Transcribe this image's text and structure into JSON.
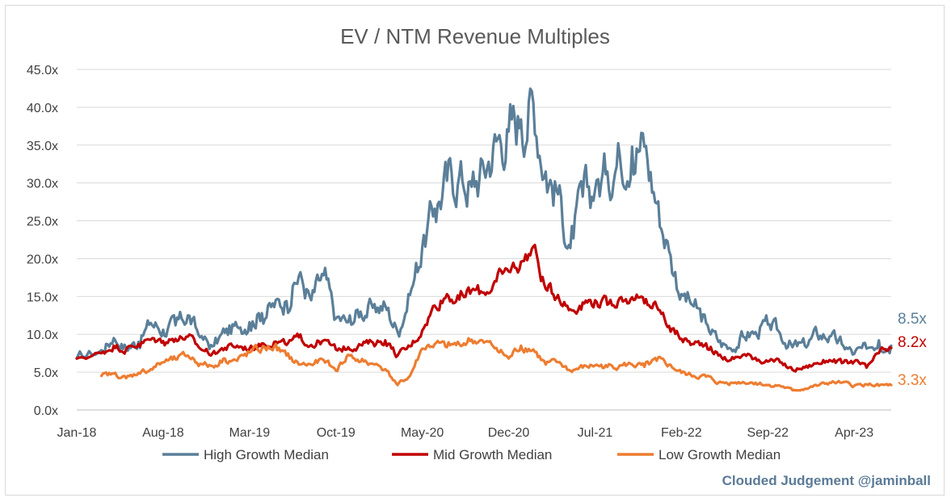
{
  "chart_data": {
    "type": "line",
    "title": "EV / NTM Revenue Multiples",
    "xlabel": "",
    "ylabel": "",
    "x_tick_labels": [
      "Jan-18",
      "Aug-18",
      "Mar-19",
      "Oct-19",
      "May-20",
      "Dec-20",
      "Jul-21",
      "Feb-22",
      "Sep-22",
      "Apr-23"
    ],
    "x_range": [
      "Jan-18",
      "Jul-23"
    ],
    "y_tick_labels": [
      "0.0x",
      "5.0x",
      "10.0x",
      "15.0x",
      "20.0x",
      "25.0x",
      "30.0x",
      "35.0x",
      "40.0x",
      "45.0x"
    ],
    "ylim": [
      0,
      45
    ],
    "grid": "horizontal",
    "legend_position": "bottom",
    "series": [
      {
        "name": "High Growth Median",
        "color": "#5b7f99",
        "end_label": "8.5x",
        "points": [
          [
            "Jan-18",
            6.8
          ],
          [
            "Mar-18",
            7.9
          ],
          [
            "Apr-18",
            9.5
          ],
          [
            "May-18",
            8.2
          ],
          [
            "Jun-18",
            9.0
          ],
          [
            "Jul-18",
            11.5
          ],
          [
            "Aug-18",
            10.6
          ],
          [
            "Sep-18",
            11.2
          ],
          [
            "Oct-18",
            12.5
          ],
          [
            "Nov-18",
            9.6
          ],
          [
            "Dec-18",
            8.4
          ],
          [
            "Jan-19",
            10.2
          ],
          [
            "Feb-19",
            11.0
          ],
          [
            "Mar-19",
            11.6
          ],
          [
            "Apr-19",
            12.8
          ],
          [
            "May-19",
            13.6
          ],
          [
            "Jun-19",
            14.4
          ],
          [
            "Jul-19",
            17.7
          ],
          [
            "Aug-19",
            14.5
          ],
          [
            "Sep-19",
            17.8
          ],
          [
            "Oct-19",
            12.1
          ],
          [
            "Nov-19",
            11.6
          ],
          [
            "Dec-19",
            13.0
          ],
          [
            "Jan-20",
            13.5
          ],
          [
            "Feb-20",
            13.8
          ],
          [
            "Mar-20",
            10.3
          ],
          [
            "Apr-20",
            15.2
          ],
          [
            "May-20",
            21.5
          ],
          [
            "Jun-20",
            26.6
          ],
          [
            "Jul-20",
            30.3
          ],
          [
            "Aug-20",
            31.0
          ],
          [
            "Sep-20",
            29.5
          ],
          [
            "Oct-20",
            31.7
          ],
          [
            "Nov-20",
            35.5
          ],
          [
            "Dec-20",
            36.8
          ],
          [
            "Jan-21",
            38.4
          ],
          [
            "Feb-21",
            40.6
          ],
          [
            "Mar-21",
            31.5
          ],
          [
            "Apr-21",
            28.5
          ],
          [
            "May-21",
            21.4
          ],
          [
            "Jun-21",
            28.2
          ],
          [
            "Jul-21",
            29.1
          ],
          [
            "Aug-21",
            31.5
          ],
          [
            "Sep-21",
            33.7
          ],
          [
            "Oct-21",
            34.8
          ],
          [
            "Nov-21",
            34.8
          ],
          [
            "Dec-21",
            27.3
          ],
          [
            "Jan-22",
            21.0
          ],
          [
            "Feb-22",
            15.3
          ],
          [
            "Mar-22",
            13.7
          ],
          [
            "Apr-22",
            11.5
          ],
          [
            "May-22",
            9.0
          ],
          [
            "Jun-22",
            8.1
          ],
          [
            "Jul-22",
            9.7
          ],
          [
            "Aug-22",
            10.3
          ],
          [
            "Sep-22",
            11.3
          ],
          [
            "Oct-22",
            10.1
          ],
          [
            "Nov-22",
            8.3
          ],
          [
            "Dec-22",
            8.5
          ],
          [
            "Jan-23",
            10.0
          ],
          [
            "Feb-23",
            9.7
          ],
          [
            "Mar-23",
            8.7
          ],
          [
            "Apr-23",
            7.4
          ],
          [
            "May-23",
            8.1
          ],
          [
            "Jun-23",
            9.2
          ],
          [
            "Jul-23",
            8.5
          ]
        ]
      },
      {
        "name": "Mid Growth Median",
        "color": "#c00000",
        "end_label": "8.2x",
        "points": [
          [
            "Jan-18",
            6.8
          ],
          [
            "Mar-18",
            7.5
          ],
          [
            "Apr-18",
            8.5
          ],
          [
            "May-18",
            8.0
          ],
          [
            "Jun-18",
            8.7
          ],
          [
            "Jul-18",
            9.3
          ],
          [
            "Aug-18",
            9.1
          ],
          [
            "Sep-18",
            9.4
          ],
          [
            "Oct-18",
            9.7
          ],
          [
            "Nov-18",
            8.1
          ],
          [
            "Dec-18",
            7.5
          ],
          [
            "Jan-19",
            8.2
          ],
          [
            "Feb-19",
            8.5
          ],
          [
            "Mar-19",
            8.1
          ],
          [
            "Apr-19",
            8.8
          ],
          [
            "May-19",
            9.0
          ],
          [
            "Jun-19",
            8.6
          ],
          [
            "Jul-19",
            9.6
          ],
          [
            "Aug-19",
            8.6
          ],
          [
            "Sep-19",
            9.2
          ],
          [
            "Oct-19",
            8.0
          ],
          [
            "Nov-19",
            8.3
          ],
          [
            "Dec-19",
            8.6
          ],
          [
            "Jan-20",
            8.9
          ],
          [
            "Feb-20",
            9.2
          ],
          [
            "Mar-20",
            7.2
          ],
          [
            "Apr-20",
            8.4
          ],
          [
            "May-20",
            10.5
          ],
          [
            "Jun-20",
            13.8
          ],
          [
            "Jul-20",
            15.3
          ],
          [
            "Aug-20",
            14.6
          ],
          [
            "Sep-20",
            15.8
          ],
          [
            "Oct-20",
            15.5
          ],
          [
            "Nov-20",
            17.0
          ],
          [
            "Dec-20",
            18.3
          ],
          [
            "Jan-21",
            19.6
          ],
          [
            "Feb-21",
            21.6
          ],
          [
            "Mar-21",
            16.0
          ],
          [
            "Apr-21",
            15.2
          ],
          [
            "May-21",
            13.3
          ],
          [
            "Jun-21",
            14.2
          ],
          [
            "Jul-21",
            14.5
          ],
          [
            "Aug-21",
            13.9
          ],
          [
            "Sep-21",
            14.8
          ],
          [
            "Oct-21",
            14.9
          ],
          [
            "Nov-21",
            14.1
          ],
          [
            "Dec-21",
            13.7
          ],
          [
            "Jan-22",
            11.1
          ],
          [
            "Feb-22",
            9.4
          ],
          [
            "Mar-22",
            8.7
          ],
          [
            "Apr-22",
            8.8
          ],
          [
            "May-22",
            7.2
          ],
          [
            "Jun-22",
            6.6
          ],
          [
            "Jul-22",
            7.3
          ],
          [
            "Aug-22",
            6.9
          ],
          [
            "Sep-22",
            6.4
          ],
          [
            "Oct-22",
            6.3
          ],
          [
            "Nov-22",
            5.3
          ],
          [
            "Dec-22",
            5.6
          ],
          [
            "Jan-23",
            6.2
          ],
          [
            "Feb-23",
            6.6
          ],
          [
            "Mar-23",
            6.2
          ],
          [
            "Apr-23",
            6.4
          ],
          [
            "May-23",
            5.6
          ],
          [
            "Jun-23",
            7.5
          ],
          [
            "Jul-23",
            8.2
          ]
        ]
      },
      {
        "name": "Low Growth Median",
        "color": "#ed7d31",
        "end_label": "3.3x",
        "points": [
          [
            "Mar-18",
            4.5
          ],
          [
            "Apr-18",
            4.8
          ],
          [
            "May-18",
            4.2
          ],
          [
            "Jun-18",
            4.9
          ],
          [
            "Jul-18",
            5.4
          ],
          [
            "Aug-18",
            6.3
          ],
          [
            "Sep-18",
            6.7
          ],
          [
            "Oct-18",
            7.2
          ],
          [
            "Nov-18",
            6.1
          ],
          [
            "Dec-18",
            5.8
          ],
          [
            "Jan-19",
            6.8
          ],
          [
            "Feb-19",
            6.5
          ],
          [
            "Mar-19",
            7.6
          ],
          [
            "Apr-19",
            8.1
          ],
          [
            "May-19",
            8.4
          ],
          [
            "Jun-19",
            7.2
          ],
          [
            "Jul-19",
            6.0
          ],
          [
            "Aug-19",
            6.0
          ],
          [
            "Sep-19",
            6.6
          ],
          [
            "Oct-19",
            5.2
          ],
          [
            "Nov-19",
            7.3
          ],
          [
            "Dec-19",
            6.4
          ],
          [
            "Jan-20",
            6.1
          ],
          [
            "Feb-20",
            5.4
          ],
          [
            "Mar-20",
            3.3
          ],
          [
            "Apr-20",
            4.5
          ],
          [
            "May-20",
            8.1
          ],
          [
            "Jun-20",
            8.7
          ],
          [
            "Jul-20",
            8.3
          ],
          [
            "Aug-20",
            8.7
          ],
          [
            "Sep-20",
            9.3
          ],
          [
            "Oct-20",
            8.9
          ],
          [
            "Nov-20",
            8.2
          ],
          [
            "Dec-20",
            6.8
          ],
          [
            "Jan-21",
            8.5
          ],
          [
            "Feb-21",
            8.0
          ],
          [
            "Mar-21",
            6.0
          ],
          [
            "Apr-21",
            6.3
          ],
          [
            "May-21",
            5.2
          ],
          [
            "Jun-21",
            5.6
          ],
          [
            "Jul-21",
            5.9
          ],
          [
            "Aug-21",
            5.7
          ],
          [
            "Sep-21",
            5.9
          ],
          [
            "Oct-21",
            6.0
          ],
          [
            "Nov-21",
            5.7
          ],
          [
            "Dec-21",
            6.5
          ],
          [
            "Jan-22",
            6.0
          ],
          [
            "Feb-22",
            4.9
          ],
          [
            "Mar-22",
            4.5
          ],
          [
            "Apr-22",
            4.4
          ],
          [
            "May-22",
            3.6
          ],
          [
            "Jun-22",
            3.6
          ],
          [
            "Jul-22",
            3.7
          ],
          [
            "Aug-22",
            3.6
          ],
          [
            "Sep-22",
            3.3
          ],
          [
            "Oct-22",
            3.2
          ],
          [
            "Nov-22",
            2.6
          ],
          [
            "Dec-22",
            2.8
          ],
          [
            "Jan-23",
            3.2
          ],
          [
            "Feb-23",
            3.6
          ],
          [
            "Mar-23",
            3.6
          ],
          [
            "Apr-23",
            3.2
          ],
          [
            "May-23",
            3.4
          ],
          [
            "Jun-23",
            3.2
          ],
          [
            "Jul-23",
            3.3
          ]
        ]
      }
    ]
  },
  "credit": "Clouded Judgement @jaminball"
}
